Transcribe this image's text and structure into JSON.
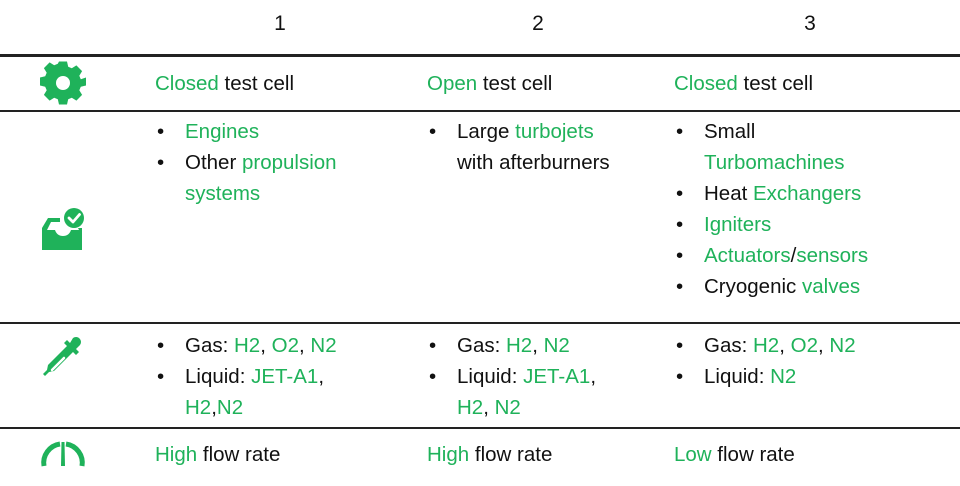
{
  "accent_color": "#1fb25a",
  "columns": [
    "1",
    "2",
    "3"
  ],
  "rows": [
    {
      "icon": "gear-icon",
      "cells": [
        {
          "bullets": false,
          "items": [
            [
              [
                [
                  "Closed",
                  true
                ],
                [
                  " test cell",
                  false
                ]
              ]
            ]
          ]
        },
        {
          "bullets": false,
          "items": [
            [
              [
                [
                  "Open",
                  true
                ],
                [
                  " test cell",
                  false
                ]
              ]
            ]
          ]
        },
        {
          "bullets": false,
          "items": [
            [
              [
                [
                  "Closed",
                  true
                ],
                [
                  " test cell",
                  false
                ]
              ]
            ]
          ]
        }
      ]
    },
    {
      "icon": "inbox-check-icon",
      "cells": [
        {
          "bullets": true,
          "items": [
            [
              [
                [
                  "Engines",
                  true
                ]
              ]
            ],
            [
              [
                [
                  "Other ",
                  false
                ],
                [
                  "propulsion",
                  true
                ]
              ],
              [
                [
                  "systems",
                  true
                ]
              ]
            ]
          ]
        },
        {
          "bullets": true,
          "items": [
            [
              [
                [
                  "Large ",
                  false
                ],
                [
                  "turbojets",
                  true
                ]
              ],
              [
                [
                  "with afterburners",
                  false
                ]
              ]
            ]
          ]
        },
        {
          "bullets": true,
          "items": [
            [
              [
                [
                  "Small",
                  false
                ]
              ],
              [
                [
                  "Turbomachines",
                  true
                ]
              ]
            ],
            [
              [
                [
                  "Heat ",
                  false
                ],
                [
                  "Exchangers",
                  true
                ]
              ]
            ],
            [
              [
                [
                  "Igniters",
                  true
                ]
              ]
            ],
            [
              [
                [
                  "Actuators",
                  true
                ],
                [
                  "/",
                  false
                ],
                [
                  "sensors",
                  true
                ]
              ]
            ],
            [
              [
                [
                  "Cryogenic ",
                  false
                ],
                [
                  "valves",
                  true
                ]
              ]
            ]
          ]
        }
      ]
    },
    {
      "icon": "dropper-icon",
      "cells": [
        {
          "bullets": true,
          "items": [
            [
              [
                [
                  "Gas: ",
                  false
                ],
                [
                  "H2",
                  true
                ],
                [
                  ", ",
                  false
                ],
                [
                  "O2",
                  true
                ],
                [
                  ", ",
                  false
                ],
                [
                  "N2",
                  true
                ]
              ]
            ],
            [
              [
                [
                  "Liquid: ",
                  false
                ],
                [
                  "JET-A1",
                  true
                ],
                [
                  ",",
                  false
                ]
              ],
              [
                [
                  "H2",
                  true
                ],
                [
                  ",",
                  false
                ],
                [
                  "N2",
                  true
                ]
              ]
            ]
          ]
        },
        {
          "bullets": true,
          "items": [
            [
              [
                [
                  "Gas: ",
                  false
                ],
                [
                  "H2",
                  true
                ],
                [
                  ", ",
                  false
                ],
                [
                  "N2",
                  true
                ]
              ]
            ],
            [
              [
                [
                  "Liquid: ",
                  false
                ],
                [
                  "JET-A1",
                  true
                ],
                [
                  ",",
                  false
                ]
              ],
              [
                [
                  "H2",
                  true
                ],
                [
                  ", ",
                  false
                ],
                [
                  "N2",
                  true
                ]
              ]
            ]
          ]
        },
        {
          "bullets": true,
          "items": [
            [
              [
                [
                  "Gas: ",
                  false
                ],
                [
                  "H2",
                  true
                ],
                [
                  ", ",
                  false
                ],
                [
                  "O2",
                  true
                ],
                [
                  ", ",
                  false
                ],
                [
                  "N2",
                  true
                ]
              ]
            ],
            [
              [
                [
                  "Liquid: ",
                  false
                ],
                [
                  "N2",
                  true
                ]
              ]
            ]
          ]
        }
      ]
    },
    {
      "icon": "gauge-icon",
      "cells": [
        {
          "bullets": false,
          "items": [
            [
              [
                [
                  "High",
                  true
                ],
                [
                  " flow rate",
                  false
                ]
              ]
            ]
          ]
        },
        {
          "bullets": false,
          "items": [
            [
              [
                [
                  "High",
                  true
                ],
                [
                  " flow rate",
                  false
                ]
              ]
            ]
          ]
        },
        {
          "bullets": false,
          "items": [
            [
              [
                [
                  "Low",
                  true
                ],
                [
                  " flow rate",
                  false
                ]
              ]
            ]
          ]
        }
      ]
    }
  ]
}
